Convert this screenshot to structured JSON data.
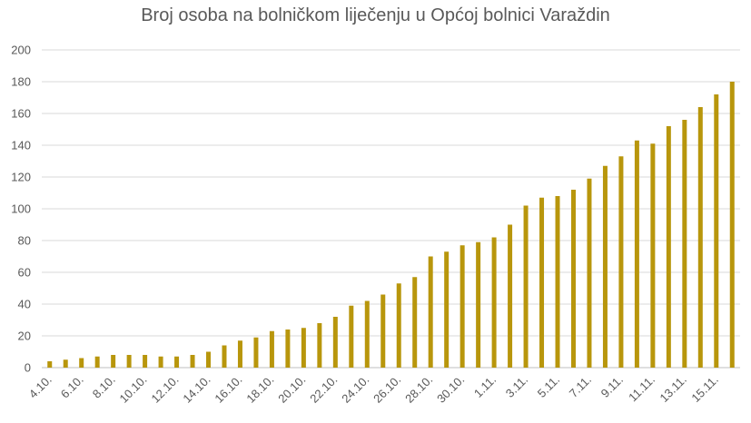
{
  "chart_data": {
    "type": "bar",
    "title": "Broj osoba na bolničkom liječenju u Općoj bolnici Varaždin",
    "xlabel": "",
    "ylabel": "",
    "ylim": [
      0,
      200
    ],
    "yticks": [
      0,
      20,
      40,
      60,
      80,
      100,
      120,
      140,
      160,
      180,
      200
    ],
    "grid": true,
    "legend": "none",
    "bar_color": "#B8960C",
    "categories": [
      "4.10.",
      "5.10.",
      "6.10.",
      "7.10.",
      "8.10.",
      "9.10.",
      "10.10.",
      "11.10.",
      "12.10.",
      "13.10.",
      "14.10.",
      "15.10.",
      "16.10.",
      "17.10.",
      "18.10.",
      "19.10.",
      "20.10.",
      "21.10.",
      "22.10.",
      "23.10.",
      "24.10.",
      "25.10.",
      "26.10.",
      "27.10.",
      "28.10.",
      "29.10.",
      "30.10.",
      "31.10.",
      "1.11.",
      "2.11.",
      "3.11.",
      "4.11.",
      "5.11.",
      "6.11.",
      "7.11.",
      "8.11.",
      "9.11.",
      "10.11.",
      "11.11.",
      "12.11.",
      "13.11.",
      "14.11.",
      "15.11.",
      "16.11."
    ],
    "shown_tick_labels": [
      "4.10.",
      "6.10.",
      "8.10.",
      "10.10.",
      "12.10.",
      "14.10.",
      "16.10.",
      "18.10.",
      "20.10.",
      "22.10.",
      "24.10.",
      "26.10.",
      "28.10.",
      "30.10.",
      "1.11.",
      "3.11.",
      "5.11.",
      "7.11.",
      "9.11.",
      "11.11.",
      "13.11.",
      "15.11."
    ],
    "values": [
      4,
      5,
      6,
      7,
      8,
      8,
      8,
      7,
      7,
      8,
      10,
      14,
      17,
      19,
      23,
      24,
      25,
      28,
      32,
      39,
      42,
      46,
      53,
      57,
      70,
      73,
      77,
      79,
      82,
      90,
      102,
      107,
      108,
      112,
      119,
      127,
      133,
      143,
      141,
      152,
      156,
      164,
      172,
      180
    ]
  }
}
